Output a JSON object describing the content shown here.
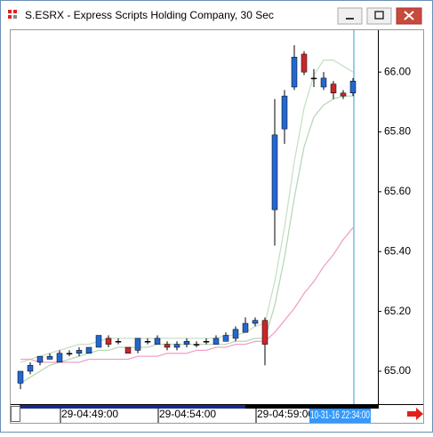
{
  "chart_data": {
    "type": "candlestick",
    "title": "S.ESRX - Express Scripts Holding Company, 30 Sec",
    "categories": [
      null,
      null,
      null,
      null,
      "29-04:49:00",
      null,
      null,
      null,
      null,
      null,
      null,
      null,
      null,
      null,
      "29-04:54:00",
      null,
      null,
      null,
      null,
      null,
      null,
      null,
      null,
      null,
      "29-04:59:00",
      null,
      null,
      null,
      null,
      null,
      null,
      null,
      null,
      null,
      null
    ],
    "cursor_label": "10-31-16 22:34:00",
    "open": [
      64.96,
      65.0,
      65.03,
      65.04,
      65.03,
      65.06,
      65.06,
      65.06,
      65.08,
      65.11,
      65.1,
      65.08,
      65.07,
      65.1,
      65.09,
      65.09,
      65.08,
      65.09,
      65.09,
      65.1,
      65.09,
      65.1,
      65.11,
      65.13,
      65.16,
      65.17,
      65.54,
      65.81,
      65.95,
      66.06,
      65.98,
      65.95,
      65.96,
      65.93,
      65.93
    ],
    "high": [
      65.0,
      65.03,
      65.05,
      65.06,
      65.07,
      65.07,
      65.08,
      65.08,
      65.12,
      65.12,
      65.11,
      65.08,
      65.11,
      65.11,
      65.12,
      65.1,
      65.1,
      65.11,
      65.1,
      65.11,
      65.12,
      65.13,
      65.15,
      65.18,
      65.18,
      65.18,
      65.91,
      65.94,
      66.09,
      66.07,
      66.01,
      66.0,
      65.97,
      65.94,
      65.98
    ],
    "low": [
      64.94,
      64.99,
      65.02,
      65.04,
      65.03,
      65.05,
      65.05,
      65.06,
      65.08,
      65.08,
      65.09,
      65.06,
      65.06,
      65.09,
      65.09,
      65.07,
      65.07,
      65.08,
      65.08,
      65.09,
      65.09,
      65.1,
      65.1,
      65.13,
      65.15,
      65.02,
      65.42,
      65.76,
      65.94,
      65.99,
      65.95,
      65.94,
      65.91,
      65.91,
      65.92
    ],
    "close": [
      65.0,
      65.02,
      65.05,
      65.05,
      65.06,
      65.06,
      65.07,
      65.08,
      65.12,
      65.09,
      65.1,
      65.06,
      65.11,
      65.1,
      65.11,
      65.08,
      65.09,
      65.1,
      65.09,
      65.1,
      65.11,
      65.12,
      65.14,
      65.16,
      65.17,
      65.09,
      65.79,
      65.92,
      66.05,
      66.0,
      65.98,
      65.98,
      65.93,
      65.92,
      65.97
    ],
    "up_color": "#2467d0",
    "down_color": "#c8282a",
    "flat_color": "#000000",
    "overlays": [
      {
        "color": "#c8e0c8",
        "values": [
          65.03,
          65.04,
          65.05,
          65.06,
          65.07,
          65.08,
          65.09,
          65.09,
          65.1,
          65.11,
          65.11,
          65.11,
          65.11,
          65.11,
          65.11,
          65.11,
          65.11,
          65.11,
          65.11,
          65.11,
          65.11,
          65.12,
          65.12,
          65.13,
          65.15,
          65.16,
          65.3,
          65.48,
          65.7,
          65.88,
          65.99,
          66.04,
          66.04,
          66.02,
          66.0
        ]
      },
      {
        "color": "#b8d8b8",
        "values": [
          64.96,
          64.98,
          65.0,
          65.02,
          65.03,
          65.04,
          65.05,
          65.06,
          65.07,
          65.07,
          65.08,
          65.08,
          65.08,
          65.08,
          65.09,
          65.09,
          65.09,
          65.09,
          65.09,
          65.09,
          65.09,
          65.09,
          65.1,
          65.1,
          65.11,
          65.11,
          65.22,
          65.38,
          65.58,
          65.75,
          65.85,
          65.89,
          65.91,
          65.92,
          65.92
        ]
      },
      {
        "color": "#f0a0c8",
        "values": [
          65.04,
          65.04,
          65.03,
          65.03,
          65.03,
          65.03,
          65.03,
          65.04,
          65.04,
          65.04,
          65.04,
          65.04,
          65.05,
          65.05,
          65.05,
          65.06,
          65.06,
          65.06,
          65.07,
          65.07,
          65.08,
          65.08,
          65.09,
          65.09,
          65.1,
          65.1,
          65.13,
          65.17,
          65.21,
          65.26,
          65.3,
          65.35,
          65.39,
          65.44,
          65.48
        ]
      }
    ],
    "ylim": [
      64.89,
      66.14
    ],
    "yticks": [
      {
        "value": 65,
        "label": "65.00"
      },
      {
        "value": 65.2,
        "label": "65.20"
      },
      {
        "value": 65.4,
        "label": "65.40"
      },
      {
        "value": 65.6,
        "label": "65.60"
      },
      {
        "value": 65.8,
        "label": "65.80"
      },
      {
        "value": 66,
        "label": "66.00"
      }
    ]
  }
}
